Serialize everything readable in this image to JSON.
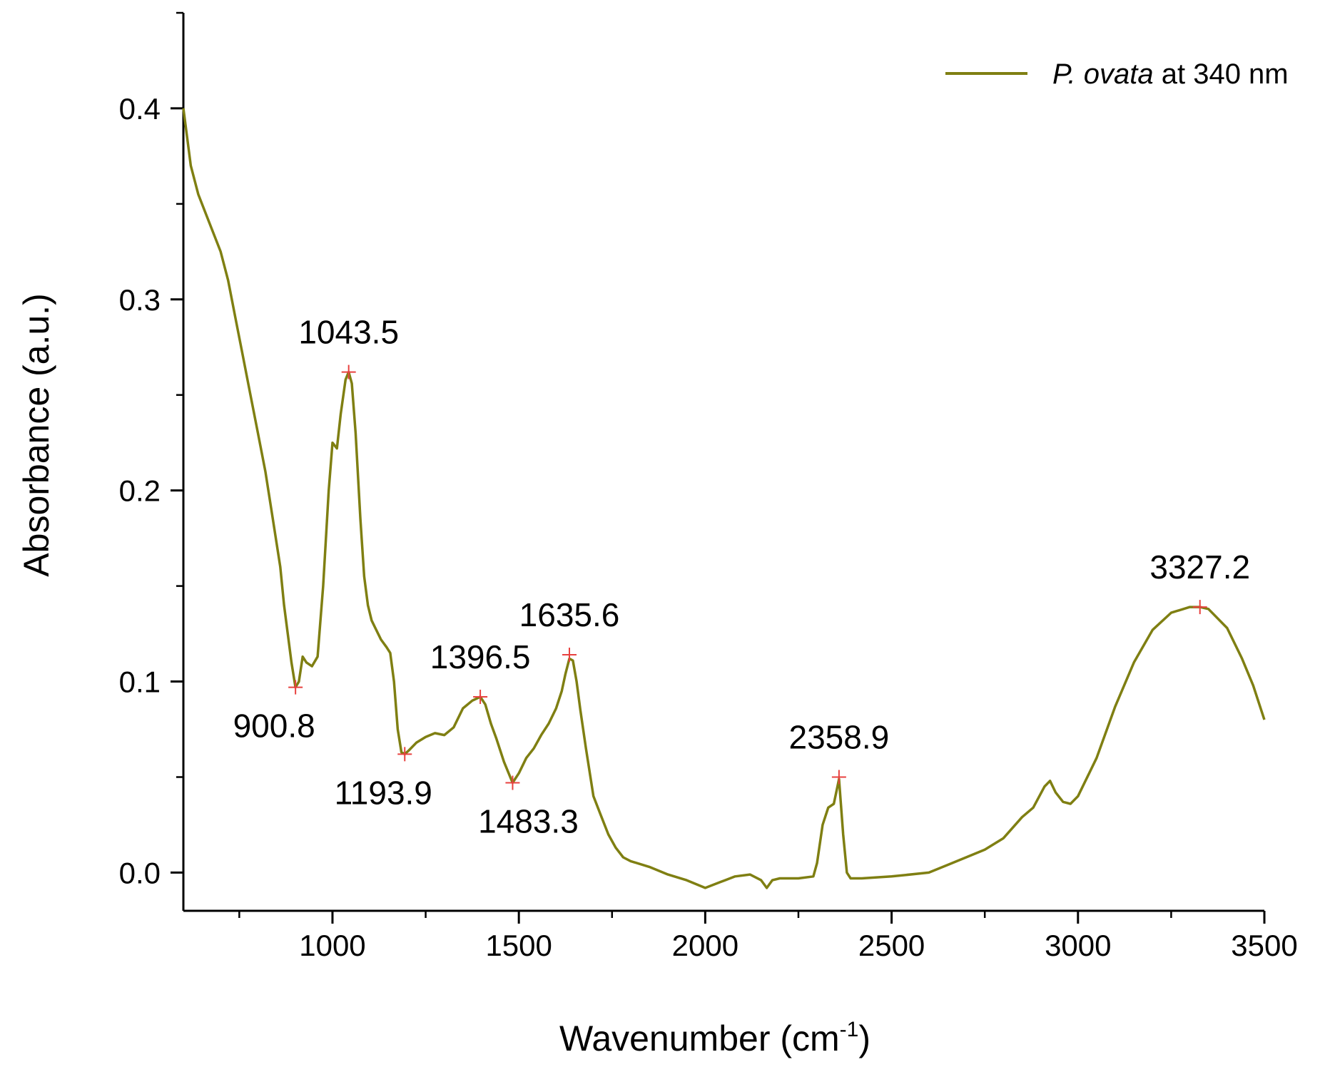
{
  "chart_data": {
    "type": "line",
    "xlabel": "Wavenumber (cm",
    "xlabel_sup": "-1",
    "xlabel_close": ")",
    "ylabel": "Absorbance (a.u.)",
    "xlim": [
      600,
      3500
    ],
    "ylim": [
      -0.02,
      0.45
    ],
    "x_ticks": [
      1000,
      1500,
      2000,
      2500,
      3000,
      3500
    ],
    "x_tick_labels": [
      "1000",
      "1500",
      "2000",
      "2500",
      "3000",
      "3500"
    ],
    "y_ticks": [
      0.0,
      0.1,
      0.2,
      0.3,
      0.4
    ],
    "y_tick_labels": [
      "0.0",
      "0.1",
      "0.2",
      "0.3",
      "0.4"
    ],
    "grid": false,
    "legend_position": "top-right",
    "series": [
      {
        "name_italic": "P. ovata",
        "name_rest": " at 340 nm",
        "color": "#7f7f12",
        "points": [
          [
            600,
            0.4
          ],
          [
            620,
            0.37
          ],
          [
            640,
            0.355
          ],
          [
            660,
            0.345
          ],
          [
            680,
            0.335
          ],
          [
            700,
            0.325
          ],
          [
            720,
            0.31
          ],
          [
            740,
            0.29
          ],
          [
            760,
            0.27
          ],
          [
            780,
            0.25
          ],
          [
            800,
            0.23
          ],
          [
            820,
            0.21
          ],
          [
            840,
            0.185
          ],
          [
            860,
            0.16
          ],
          [
            870,
            0.14
          ],
          [
            880,
            0.125
          ],
          [
            890,
            0.11
          ],
          [
            900.8,
            0.097
          ],
          [
            910,
            0.1
          ],
          [
            920,
            0.113
          ],
          [
            930,
            0.11
          ],
          [
            945,
            0.108
          ],
          [
            960,
            0.113
          ],
          [
            975,
            0.15
          ],
          [
            990,
            0.2
          ],
          [
            1000,
            0.225
          ],
          [
            1012,
            0.222
          ],
          [
            1022,
            0.24
          ],
          [
            1035,
            0.258
          ],
          [
            1043.5,
            0.262
          ],
          [
            1052,
            0.256
          ],
          [
            1062,
            0.23
          ],
          [
            1075,
            0.185
          ],
          [
            1085,
            0.155
          ],
          [
            1095,
            0.14
          ],
          [
            1105,
            0.132
          ],
          [
            1115,
            0.128
          ],
          [
            1130,
            0.122
          ],
          [
            1145,
            0.118
          ],
          [
            1155,
            0.115
          ],
          [
            1165,
            0.1
          ],
          [
            1175,
            0.075
          ],
          [
            1185,
            0.063
          ],
          [
            1193.9,
            0.062
          ],
          [
            1205,
            0.064
          ],
          [
            1225,
            0.068
          ],
          [
            1250,
            0.071
          ],
          [
            1275,
            0.073
          ],
          [
            1300,
            0.072
          ],
          [
            1325,
            0.076
          ],
          [
            1350,
            0.086
          ],
          [
            1375,
            0.09
          ],
          [
            1396.5,
            0.092
          ],
          [
            1410,
            0.088
          ],
          [
            1425,
            0.078
          ],
          [
            1440,
            0.07
          ],
          [
            1460,
            0.058
          ],
          [
            1483.3,
            0.047
          ],
          [
            1500,
            0.052
          ],
          [
            1520,
            0.06
          ],
          [
            1540,
            0.065
          ],
          [
            1560,
            0.072
          ],
          [
            1580,
            0.078
          ],
          [
            1600,
            0.086
          ],
          [
            1615,
            0.095
          ],
          [
            1625,
            0.104
          ],
          [
            1635.6,
            0.112
          ],
          [
            1645,
            0.111
          ],
          [
            1655,
            0.1
          ],
          [
            1665,
            0.085
          ],
          [
            1680,
            0.065
          ],
          [
            1700,
            0.04
          ],
          [
            1720,
            0.03
          ],
          [
            1740,
            0.02
          ],
          [
            1760,
            0.013
          ],
          [
            1780,
            0.008
          ],
          [
            1800,
            0.006
          ],
          [
            1850,
            0.003
          ],
          [
            1900,
            -0.001
          ],
          [
            1950,
            -0.004
          ],
          [
            2000,
            -0.008
          ],
          [
            2040,
            -0.005
          ],
          [
            2080,
            -0.002
          ],
          [
            2120,
            -0.001
          ],
          [
            2150,
            -0.004
          ],
          [
            2165,
            -0.008
          ],
          [
            2180,
            -0.004
          ],
          [
            2200,
            -0.003
          ],
          [
            2250,
            -0.003
          ],
          [
            2290,
            -0.002
          ],
          [
            2300,
            0.005
          ],
          [
            2315,
            0.025
          ],
          [
            2330,
            0.034
          ],
          [
            2345,
            0.036
          ],
          [
            2358.9,
            0.049
          ],
          [
            2370,
            0.02
          ],
          [
            2380,
            0.0
          ],
          [
            2390,
            -0.003
          ],
          [
            2420,
            -0.003
          ],
          [
            2500,
            -0.002
          ],
          [
            2600,
            0.0
          ],
          [
            2650,
            0.004
          ],
          [
            2700,
            0.008
          ],
          [
            2750,
            0.012
          ],
          [
            2800,
            0.018
          ],
          [
            2850,
            0.029
          ],
          [
            2880,
            0.034
          ],
          [
            2910,
            0.045
          ],
          [
            2925,
            0.048
          ],
          [
            2940,
            0.042
          ],
          [
            2960,
            0.037
          ],
          [
            2980,
            0.036
          ],
          [
            3000,
            0.04
          ],
          [
            3050,
            0.06
          ],
          [
            3100,
            0.087
          ],
          [
            3150,
            0.11
          ],
          [
            3200,
            0.127
          ],
          [
            3250,
            0.136
          ],
          [
            3300,
            0.139
          ],
          [
            3327.2,
            0.139
          ],
          [
            3350,
            0.138
          ],
          [
            3400,
            0.128
          ],
          [
            3440,
            0.112
          ],
          [
            3470,
            0.098
          ],
          [
            3500,
            0.08
          ]
        ]
      }
    ],
    "peaks": [
      {
        "x": 900.8,
        "y": 0.097,
        "label": "900.8",
        "label_pos": "below-left"
      },
      {
        "x": 1043.5,
        "y": 0.262,
        "label": "1043.5",
        "label_pos": "above"
      },
      {
        "x": 1193.9,
        "y": 0.062,
        "label": "1193.9",
        "label_pos": "below-left"
      },
      {
        "x": 1396.5,
        "y": 0.092,
        "label": "1396.5",
        "label_pos": "above"
      },
      {
        "x": 1483.3,
        "y": 0.047,
        "label": "1483.3",
        "label_pos": "below"
      },
      {
        "x": 1635.6,
        "y": 0.114,
        "label": "1635.6",
        "label_pos": "above"
      },
      {
        "x": 2358.9,
        "y": 0.05,
        "label": "2358.9",
        "label_pos": "above"
      },
      {
        "x": 3327.2,
        "y": 0.139,
        "label": "3327.2",
        "label_pos": "above"
      }
    ],
    "peak_marker_color": "#e8413f"
  }
}
